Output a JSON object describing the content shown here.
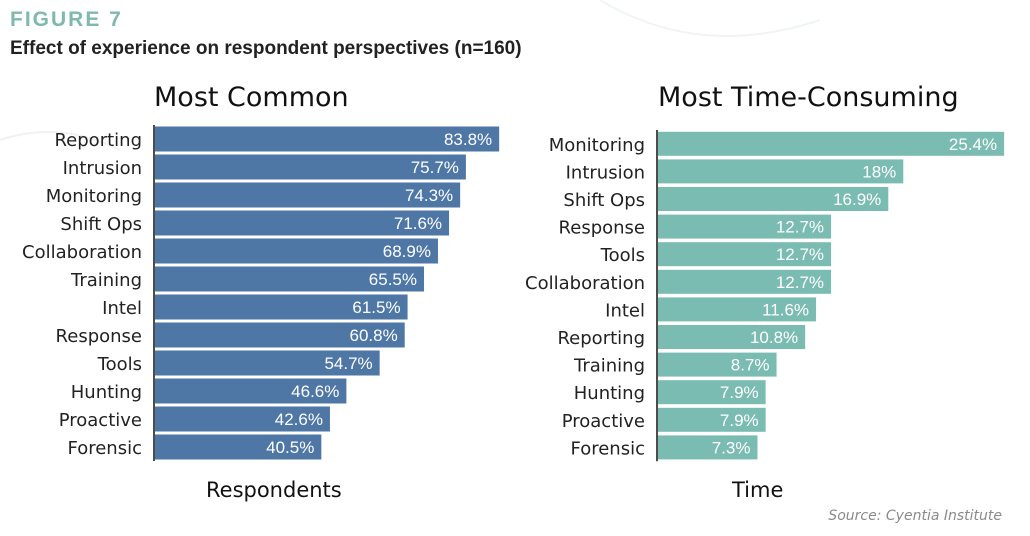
{
  "figure": {
    "label": "FIGURE 7",
    "title": "Effect of experience on respondent perspectives (n=160)",
    "source": "Source: Cyentia Institute"
  },
  "colors": {
    "accent": "#7fb8ac",
    "left_bar": "#4e77a6",
    "right_bar": "#7bbcb2"
  },
  "chart_data": [
    {
      "type": "bar",
      "orientation": "horizontal",
      "title": "Most Common",
      "xlabel": "Respondents",
      "ylabel": "",
      "value_suffix": "%",
      "xlim": [
        0,
        100
      ],
      "categories": [
        "Reporting",
        "Intrusion",
        "Monitoring",
        "Shift Ops",
        "Collaboration",
        "Training",
        "Intel",
        "Response",
        "Tools",
        "Hunting",
        "Proactive",
        "Forensic"
      ],
      "values": [
        83.8,
        75.7,
        74.3,
        71.6,
        68.9,
        65.5,
        61.5,
        60.8,
        54.7,
        46.6,
        42.6,
        40.5
      ],
      "labels": [
        "83.8%",
        "75.7%",
        "74.3%",
        "71.6%",
        "68.9%",
        "65.5%",
        "61.5%",
        "60.8%",
        "54.7%",
        "46.6%",
        "42.6%",
        "40.5%"
      ],
      "color": "#4e77a6"
    },
    {
      "type": "bar",
      "orientation": "horizontal",
      "title": "Most Time-Consuming",
      "xlabel": "Time",
      "ylabel": "",
      "value_suffix": "%",
      "xlim": [
        0,
        26
      ],
      "categories": [
        "Monitoring",
        "Intrusion",
        "Shift Ops",
        "Response",
        "Tools",
        "Collaboration",
        "Intel",
        "Reporting",
        "Training",
        "Hunting",
        "Proactive",
        "Forensic"
      ],
      "values": [
        25.4,
        18,
        16.9,
        12.7,
        12.7,
        12.7,
        11.6,
        10.8,
        8.7,
        7.9,
        7.9,
        7.3
      ],
      "labels": [
        "25.4%",
        "18%",
        "16.9%",
        "12.7%",
        "12.7%",
        "12.7%",
        "11.6%",
        "10.8%",
        "8.7%",
        "7.9%",
        "7.9%",
        "7.3%"
      ],
      "color": "#7bbcb2"
    }
  ]
}
